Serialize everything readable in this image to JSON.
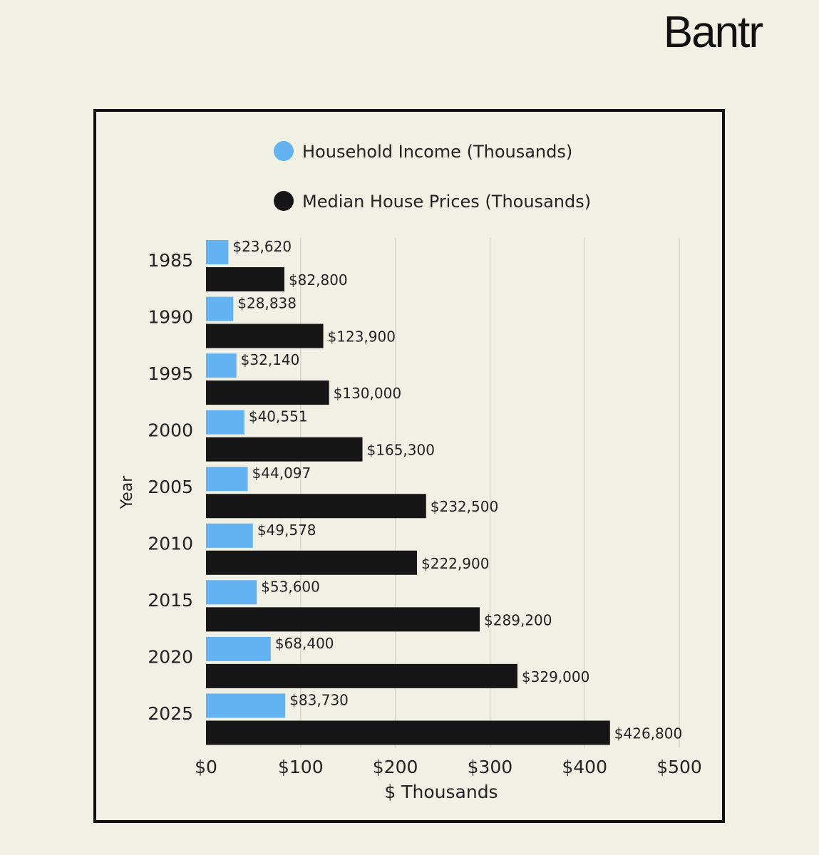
{
  "brand": {
    "name": "Bantr"
  },
  "chart_data": {
    "type": "bar",
    "orientation": "horizontal",
    "categories": [
      "1985",
      "1990",
      "1995",
      "2000",
      "2005",
      "2010",
      "2015",
      "2020",
      "2025"
    ],
    "series": [
      {
        "name": "Household Income (Thousands)",
        "color": "#63b3f2",
        "values": [
          23.62,
          28.838,
          32.14,
          40.551,
          44.097,
          49.578,
          53.6,
          68.4,
          83.73
        ],
        "labels": [
          "$23,620",
          "$28,838",
          "$32,140",
          "$40,551",
          "$44,097",
          "$49,578",
          "$53,600",
          "$68,400",
          "$83,730"
        ]
      },
      {
        "name": "Median House Prices (Thousands)",
        "color": "#161616",
        "values": [
          82.8,
          123.9,
          130,
          165.3,
          232.5,
          222.9,
          289.2,
          329,
          426.8
        ],
        "labels": [
          "$82,800",
          "$123,900",
          "$130,000",
          "$165,300",
          "$232,500",
          "$222,900",
          "$289,200",
          "$329,000",
          "$426,800"
        ]
      }
    ],
    "xlabel": "$ Thousands",
    "ylabel": "Year",
    "xlim": [
      0,
      500
    ],
    "xticks": [
      0,
      100,
      200,
      300,
      400,
      500
    ],
    "xtick_labels": [
      "$0",
      "$100",
      "$200",
      "$300",
      "$400",
      "$500"
    ],
    "grid": true,
    "legend_position": "top"
  }
}
